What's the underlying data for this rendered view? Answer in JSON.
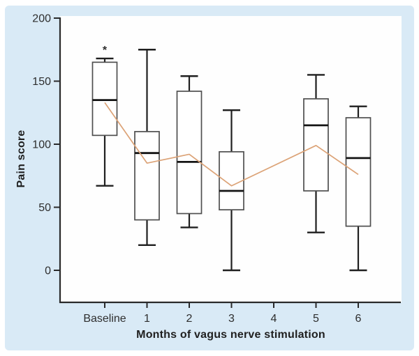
{
  "chart_data": {
    "type": "boxplot",
    "title": "",
    "xlabel": "Months of vagus nerve stimulation",
    "ylabel": "Pain score",
    "categories": [
      "Baseline",
      "1",
      "2",
      "3",
      "4",
      "5",
      "6"
    ],
    "yticks": [
      0,
      50,
      100,
      150,
      200
    ],
    "ylim": [
      0,
      200
    ],
    "grid": false,
    "legend": "none",
    "boxes": [
      {
        "category": "Baseline",
        "whisker_low": 67,
        "q1": 107,
        "median": 135,
        "q3": 165,
        "whisker_high": 168,
        "outliers": [
          178
        ],
        "outlier_symbol": "*"
      },
      {
        "category": "1",
        "whisker_low": 20,
        "q1": 40,
        "median": 93,
        "q3": 110,
        "whisker_high": 175,
        "outliers": []
      },
      {
        "category": "2",
        "whisker_low": 34,
        "q1": 45,
        "median": 86,
        "q3": 142,
        "whisker_high": 154,
        "outliers": []
      },
      {
        "category": "3",
        "whisker_low": 0,
        "q1": 48,
        "median": 63,
        "q3": 94,
        "whisker_high": 127,
        "outliers": []
      },
      {
        "category": "5",
        "whisker_low": 30,
        "q1": 63,
        "median": 115,
        "q3": 136,
        "whisker_high": 155,
        "outliers": []
      },
      {
        "category": "6",
        "whisker_low": 0,
        "q1": 35,
        "median": 89,
        "q3": 121,
        "whisker_high": 130,
        "outliers": []
      }
    ],
    "mean_line": {
      "points": [
        {
          "category": "Baseline",
          "value": 133
        },
        {
          "category": "1",
          "value": 85
        },
        {
          "category": "2",
          "value": 92
        },
        {
          "category": "3",
          "value": 67
        },
        {
          "category": "5",
          "value": 99
        },
        {
          "category": "6",
          "value": 76
        }
      ]
    },
    "colors": {
      "panel_bg": "#d9eaf6",
      "plot_bg": "#fefefe",
      "axis": "#2a2a2a",
      "box_stroke": "#4f4f4f",
      "box_fill": "#ffffff",
      "median": "#141414",
      "whisker": "#1f1f1f",
      "mean_line": "#dca377",
      "text": "#2e2e2e"
    }
  }
}
